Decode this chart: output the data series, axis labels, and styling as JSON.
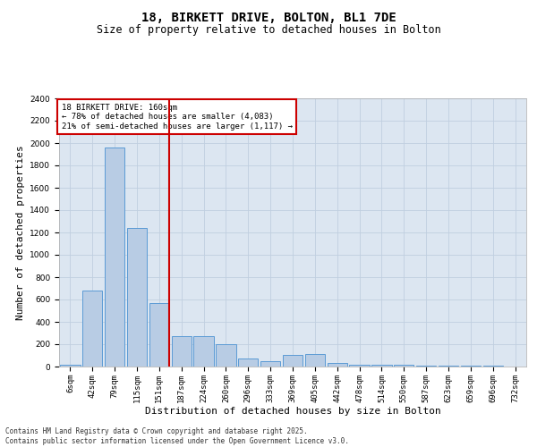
{
  "title": "18, BIRKETT DRIVE, BOLTON, BL1 7DE",
  "subtitle": "Size of property relative to detached houses in Bolton",
  "xlabel": "Distribution of detached houses by size in Bolton",
  "ylabel": "Number of detached properties",
  "categories": [
    "6sqm",
    "42sqm",
    "79sqm",
    "115sqm",
    "151sqm",
    "187sqm",
    "224sqm",
    "260sqm",
    "296sqm",
    "333sqm",
    "369sqm",
    "405sqm",
    "442sqm",
    "478sqm",
    "514sqm",
    "550sqm",
    "587sqm",
    "623sqm",
    "659sqm",
    "696sqm",
    "732sqm"
  ],
  "values": [
    20,
    680,
    1960,
    1240,
    570,
    270,
    270,
    200,
    75,
    45,
    105,
    110,
    35,
    15,
    15,
    15,
    8,
    5,
    5,
    5,
    2
  ],
  "bar_color": "#b8cce4",
  "bar_edge_color": "#5b9bd5",
  "vline_x_index": 4,
  "vline_color": "#cc0000",
  "annotation_box_text": "18 BIRKETT DRIVE: 160sqm\n← 78% of detached houses are smaller (4,083)\n21% of semi-detached houses are larger (1,117) →",
  "annotation_box_color": "#cc0000",
  "annotation_box_bg": "#ffffff",
  "grid_color": "#c0cfe0",
  "background_color": "#dce6f1",
  "ylim": [
    0,
    2400
  ],
  "yticks": [
    0,
    200,
    400,
    600,
    800,
    1000,
    1200,
    1400,
    1600,
    1800,
    2000,
    2200,
    2400
  ],
  "footer_text": "Contains HM Land Registry data © Crown copyright and database right 2025.\nContains public sector information licensed under the Open Government Licence v3.0.",
  "title_fontsize": 10,
  "subtitle_fontsize": 8.5,
  "tick_fontsize": 6.5,
  "label_fontsize": 8,
  "footer_fontsize": 5.5
}
